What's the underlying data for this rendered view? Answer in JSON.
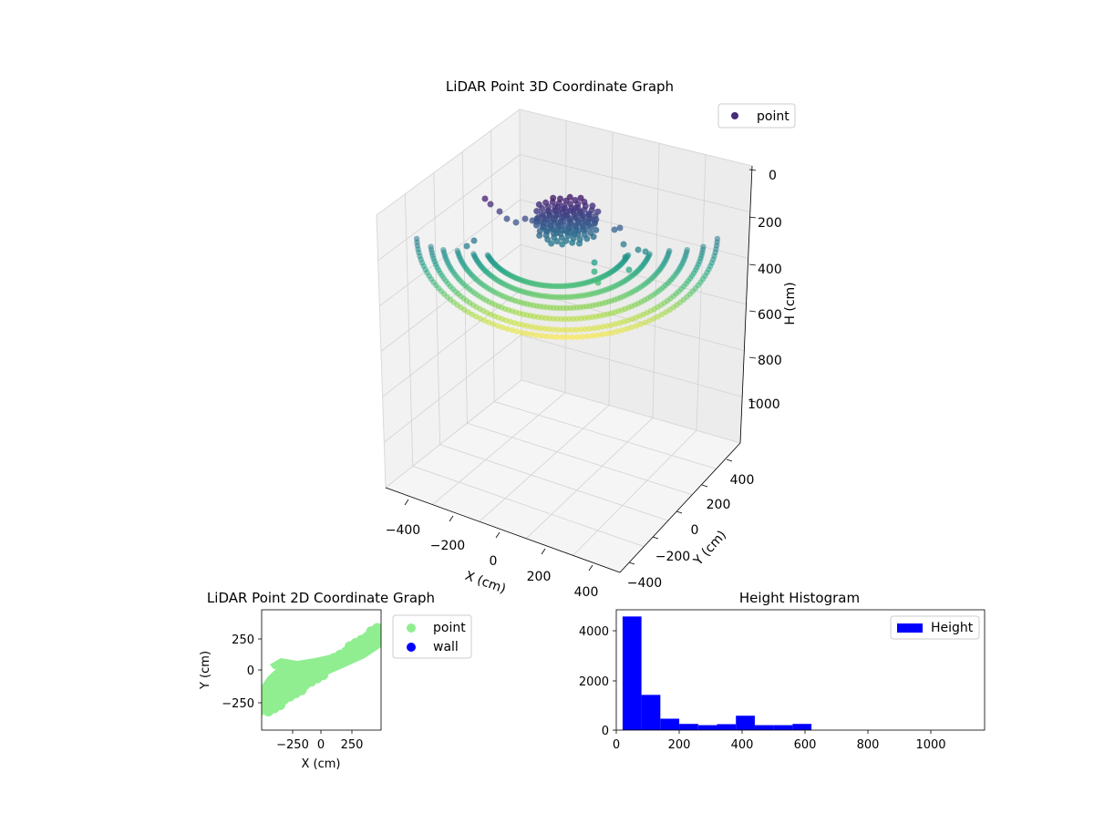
{
  "chart_data": [
    {
      "type": "scatter3d",
      "title": "LiDAR Point 3D Coordinate Graph",
      "xlabel": "X (cm)",
      "ylabel": "Y (cm)",
      "zlabel": "H (cm)",
      "x_ticks": [
        "−400",
        "−200",
        "0",
        "200",
        "400"
      ],
      "y_ticks": [
        "−400",
        "−200",
        "0",
        "200",
        "400"
      ],
      "z_ticks": [
        "0",
        "200",
        "400",
        "600",
        "800",
        "1000"
      ],
      "xlim": [
        -450,
        450
      ],
      "ylim": [
        -450,
        450
      ],
      "zlim": [
        0,
        1100
      ],
      "z_inverted": true,
      "colormap": "viridis",
      "legend": [
        {
          "label": "point",
          "color": "#472c7a"
        }
      ],
      "legend_position": "top-right",
      "grid": true
    },
    {
      "type": "scatter",
      "title": "LiDAR Point 2D Coordinate Graph",
      "xlabel": "X (cm)",
      "ylabel": "Y (cm)",
      "x_ticks": [
        "−250",
        "0",
        "250"
      ],
      "y_ticks": [
        "250",
        "0",
        "−250"
      ],
      "xlim": [
        -470,
        470
      ],
      "ylim": [
        -400,
        480
      ],
      "series": [
        {
          "name": "point",
          "color": "#90ee90"
        },
        {
          "name": "wall",
          "color": "#0000ff"
        }
      ],
      "legend_position": "outside-right"
    },
    {
      "type": "bar",
      "title": "Height Histogram",
      "x_ticks": [
        "0",
        "200",
        "400",
        "600",
        "800",
        "1000"
      ],
      "y_ticks": [
        "0",
        "2000",
        "4000"
      ],
      "xlim": [
        0,
        1170
      ],
      "ylim": [
        0,
        4850
      ],
      "bin_width": 60,
      "bins": [
        {
          "x0": 20,
          "value": 4580
        },
        {
          "x0": 80,
          "value": 1420
        },
        {
          "x0": 140,
          "value": 460
        },
        {
          "x0": 200,
          "value": 250
        },
        {
          "x0": 260,
          "value": 200
        },
        {
          "x0": 320,
          "value": 240
        },
        {
          "x0": 380,
          "value": 580
        },
        {
          "x0": 440,
          "value": 200
        },
        {
          "x0": 500,
          "value": 200
        },
        {
          "x0": 560,
          "value": 250
        }
      ],
      "series": [
        {
          "name": "Height",
          "color": "#0000ff"
        }
      ],
      "legend_position": "top-right"
    }
  ]
}
